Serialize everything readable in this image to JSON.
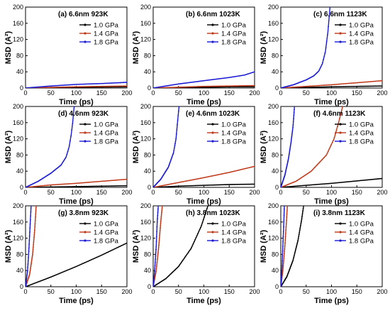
{
  "chart_data": [
    {
      "type": "line",
      "title": "(a) 6.6nm  923K",
      "xlabel": "Time (ps)",
      "ylabel": "MSD (A²)",
      "xlim": [
        0,
        200
      ],
      "ylim": [
        0,
        200
      ],
      "xticks": [
        0,
        50,
        100,
        150,
        200
      ],
      "yticks": [
        0,
        40,
        80,
        120,
        160,
        200
      ],
      "legend": "top-right",
      "series": [
        {
          "name": "1.0 GPa",
          "color": "#000000",
          "x": [
            0,
            50,
            100,
            150,
            200
          ],
          "y": [
            0,
            1,
            2,
            2.5,
            3
          ]
        },
        {
          "name": "1.4 GPa",
          "color": "#c0391b",
          "x": [
            0,
            50,
            100,
            150,
            200
          ],
          "y": [
            0,
            1.5,
            3,
            4,
            5
          ]
        },
        {
          "name": "1.8 GPa",
          "color": "#1a1ad6",
          "x": [
            0,
            50,
            100,
            150,
            200
          ],
          "y": [
            0,
            5,
            9,
            11,
            14
          ]
        }
      ]
    },
    {
      "type": "line",
      "title": "(b) 6.6nm  1023K",
      "xlabel": "Time (ps)",
      "ylabel": "MSD (A²)",
      "xlim": [
        0,
        200
      ],
      "ylim": [
        0,
        200
      ],
      "xticks": [
        0,
        50,
        100,
        150,
        200
      ],
      "yticks": [
        0,
        40,
        80,
        120,
        160,
        200
      ],
      "legend": "top-right",
      "series": [
        {
          "name": "1.0 GPa",
          "color": "#000000",
          "x": [
            0,
            50,
            100,
            150,
            200
          ],
          "y": [
            0,
            1,
            2,
            3,
            3
          ]
        },
        {
          "name": "1.4 GPa",
          "color": "#c0391b",
          "x": [
            0,
            50,
            100,
            150,
            200
          ],
          "y": [
            0,
            2,
            4,
            5,
            6
          ]
        },
        {
          "name": "1.8 GPa",
          "color": "#1a1ad6",
          "x": [
            0,
            50,
            100,
            150,
            180,
            200
          ],
          "y": [
            0,
            10,
            18,
            26,
            32,
            40
          ]
        }
      ]
    },
    {
      "type": "line",
      "title": "(c) 6.6nm  1123K",
      "xlabel": "Time (ps)",
      "ylabel": "MSD (A²)",
      "xlim": [
        0,
        200
      ],
      "ylim": [
        0,
        200
      ],
      "xticks": [
        0,
        50,
        100,
        150,
        200
      ],
      "yticks": [
        0,
        40,
        80,
        120,
        160,
        200
      ],
      "legend": "top-right",
      "series": [
        {
          "name": "1.0 GPa",
          "color": "#000000",
          "x": [
            0,
            50,
            100,
            150,
            200
          ],
          "y": [
            0,
            1.5,
            3,
            4,
            5
          ]
        },
        {
          "name": "1.4 GPa",
          "color": "#c0391b",
          "x": [
            0,
            50,
            100,
            150,
            200
          ],
          "y": [
            0,
            4,
            8,
            13,
            18
          ]
        },
        {
          "name": "1.8 GPa",
          "color": "#1a1ad6",
          "x": [
            0,
            25,
            50,
            65,
            75,
            82,
            88,
            93,
            97
          ],
          "y": [
            0,
            8,
            20,
            30,
            42,
            60,
            90,
            140,
            200
          ]
        }
      ]
    },
    {
      "type": "line",
      "title": "(d) 4.6nm  923K",
      "xlabel": "Time (ps)",
      "ylabel": "MSD (A²)",
      "xlim": [
        0,
        200
      ],
      "ylim": [
        0,
        200
      ],
      "xticks": [
        0,
        50,
        100,
        150,
        200
      ],
      "yticks": [
        0,
        40,
        80,
        120,
        160,
        200
      ],
      "legend": "top-right",
      "series": [
        {
          "name": "1.0 GPa",
          "color": "#000000",
          "x": [
            0,
            50,
            100,
            150,
            200
          ],
          "y": [
            0,
            1,
            2,
            3,
            4
          ]
        },
        {
          "name": "1.4 GPa",
          "color": "#c0391b",
          "x": [
            0,
            50,
            100,
            150,
            200
          ],
          "y": [
            0,
            6,
            10,
            15,
            20
          ]
        },
        {
          "name": "1.8 GPa",
          "color": "#1a1ad6",
          "x": [
            0,
            25,
            50,
            70,
            80,
            86,
            90,
            93,
            96
          ],
          "y": [
            0,
            15,
            35,
            55,
            75,
            100,
            130,
            160,
            200
          ]
        }
      ]
    },
    {
      "type": "line",
      "title": "(e) 4.6nm  1023K",
      "xlabel": "Time (ps)",
      "ylabel": "MSD (A²)",
      "xlim": [
        0,
        200
      ],
      "ylim": [
        0,
        200
      ],
      "xticks": [
        0,
        50,
        100,
        150,
        200
      ],
      "yticks": [
        0,
        40,
        80,
        120,
        160,
        200
      ],
      "legend": "top-right",
      "series": [
        {
          "name": "1.0 GPa",
          "color": "#000000",
          "x": [
            0,
            50,
            100,
            150,
            200
          ],
          "y": [
            0,
            3,
            5,
            7,
            8
          ]
        },
        {
          "name": "1.4 GPa",
          "color": "#c0391b",
          "x": [
            0,
            50,
            100,
            150,
            200
          ],
          "y": [
            0,
            12,
            24,
            37,
            52
          ]
        },
        {
          "name": "1.8 GPa",
          "color": "#1a1ad6",
          "x": [
            0,
            15,
            30,
            40,
            45,
            48,
            51
          ],
          "y": [
            0,
            20,
            50,
            85,
            120,
            160,
            200
          ]
        }
      ]
    },
    {
      "type": "line",
      "title": "(f) 4.6nm  1123K",
      "xlabel": "Time (ps)",
      "ylabel": "MSD (A²)",
      "xlim": [
        0,
        200
      ],
      "ylim": [
        0,
        200
      ],
      "xticks": [
        0,
        50,
        100,
        150,
        200
      ],
      "yticks": [
        0,
        40,
        80,
        120,
        160,
        200
      ],
      "legend": "top-right",
      "series": [
        {
          "name": "1.0 GPa",
          "color": "#000000",
          "x": [
            0,
            50,
            100,
            150,
            200
          ],
          "y": [
            0,
            5,
            10,
            16,
            22
          ]
        },
        {
          "name": "1.4 GPa",
          "color": "#c0391b",
          "x": [
            0,
            30,
            60,
            90,
            105,
            115,
            122
          ],
          "y": [
            0,
            15,
            40,
            80,
            120,
            165,
            200
          ]
        },
        {
          "name": "1.8 GPa",
          "color": "#1a1ad6",
          "x": [
            0,
            8,
            15,
            20,
            24,
            27
          ],
          "y": [
            0,
            30,
            70,
            110,
            150,
            200
          ]
        }
      ]
    },
    {
      "type": "line",
      "title": "(g) 3.8nm  923K",
      "xlabel": "Time (ps)",
      "ylabel": "MSD (A²)",
      "xlim": [
        0,
        200
      ],
      "ylim": [
        0,
        200
      ],
      "xticks": [
        0,
        50,
        100,
        150,
        200
      ],
      "yticks": [
        0,
        40,
        80,
        120,
        160,
        200
      ],
      "legend": "top-right",
      "series": [
        {
          "name": "1.0 GPa",
          "color": "#000000",
          "x": [
            0,
            50,
            100,
            150,
            200
          ],
          "y": [
            0,
            24,
            50,
            78,
            108
          ]
        },
        {
          "name": "1.4 GPa",
          "color": "#c0391b",
          "x": [
            0,
            8,
            14,
            18,
            21
          ],
          "y": [
            0,
            30,
            80,
            140,
            200
          ]
        },
        {
          "name": "1.8 GPa",
          "color": "#1a1ad6",
          "x": [
            0,
            4,
            7,
            9,
            11
          ],
          "y": [
            0,
            40,
            100,
            150,
            200
          ]
        }
      ]
    },
    {
      "type": "line",
      "title": "(h) 3.8nm 1023K",
      "xlabel": "Time (ps)",
      "ylabel": "MSD (A²)",
      "xlim": [
        0,
        200
      ],
      "ylim": [
        0,
        200
      ],
      "xticks": [
        0,
        50,
        100,
        150,
        200
      ],
      "yticks": [
        0,
        40,
        80,
        120,
        160,
        200
      ],
      "legend": "top-right",
      "series": [
        {
          "name": "1.0 GPa",
          "color": "#000000",
          "x": [
            0,
            25,
            50,
            75,
            95,
            108
          ],
          "y": [
            0,
            20,
            50,
            95,
            150,
            200
          ]
        },
        {
          "name": "1.4 GPa",
          "color": "#c0391b",
          "x": [
            0,
            6,
            11,
            15,
            18
          ],
          "y": [
            0,
            40,
            100,
            160,
            200
          ]
        },
        {
          "name": "1.8 GPa",
          "color": "#1a1ad6",
          "x": [
            0,
            3,
            6,
            8,
            10
          ],
          "y": [
            0,
            40,
            100,
            160,
            200
          ]
        }
      ]
    },
    {
      "type": "line",
      "title": "(i) 3.8nm  1123K",
      "xlabel": "Time (ps)",
      "ylabel": "MSD (A²)",
      "xlim": [
        0,
        200
      ],
      "ylim": [
        0,
        200
      ],
      "xticks": [
        0,
        50,
        100,
        150,
        200
      ],
      "yticks": [
        0,
        40,
        80,
        120,
        160,
        200
      ],
      "legend": "top-right",
      "series": [
        {
          "name": "1.0 GPa",
          "color": "#000000",
          "x": [
            0,
            12,
            24,
            34,
            41,
            45
          ],
          "y": [
            0,
            25,
            65,
            115,
            165,
            200
          ]
        },
        {
          "name": "1.4 GPa",
          "color": "#c0391b",
          "x": [
            0,
            4,
            8,
            11,
            13
          ],
          "y": [
            0,
            40,
            100,
            160,
            200
          ]
        },
        {
          "name": "1.8 GPa",
          "color": "#1a1ad6",
          "x": [
            0,
            2,
            4,
            6,
            7
          ],
          "y": [
            0,
            40,
            100,
            160,
            200
          ]
        }
      ]
    }
  ]
}
